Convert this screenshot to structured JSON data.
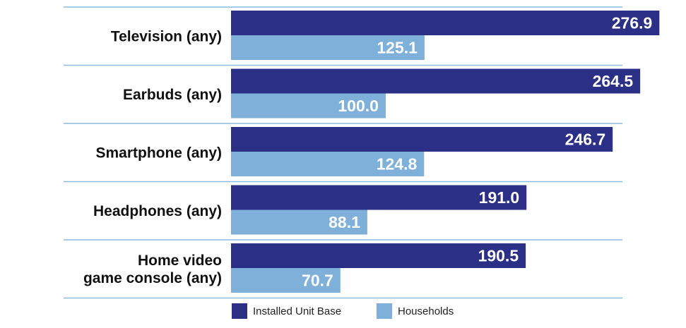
{
  "chart_data": {
    "type": "bar",
    "orientation": "horizontal",
    "title": "",
    "xlabel": "",
    "ylabel": "",
    "categories": [
      [
        "Television (any)"
      ],
      [
        "Earbuds (any)"
      ],
      [
        "Smartphone (any)"
      ],
      [
        "Headphones (any)"
      ],
      [
        "Home video",
        "game console (any)"
      ]
    ],
    "series": [
      {
        "name": "Installed Unit Base",
        "color": "#2b2f86",
        "values": [
          276.9,
          264.5,
          246.7,
          191.0,
          190.5
        ],
        "labels": [
          "276.9",
          "264.5",
          "246.7",
          "191.0",
          "190.5"
        ]
      },
      {
        "name": "Households",
        "color": "#7fb0d9",
        "values": [
          125.1,
          100.0,
          124.8,
          88.1,
          70.7
        ],
        "labels": [
          "125.1",
          "100.0",
          "124.8",
          "88.1",
          "70.7"
        ]
      }
    ],
    "xlim": [
      0,
      290
    ],
    "grid": false,
    "legend": "bottom",
    "separator_color": "#8fb9de"
  }
}
